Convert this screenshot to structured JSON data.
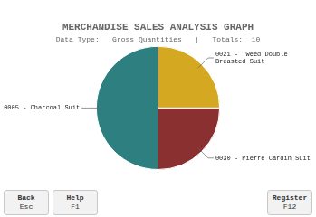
{
  "chart_data": {
    "type": "pie",
    "title": "MERCHANDISE SALES ANALYSIS GRAPH",
    "subtitle": "Data Type:   Gross Quantities   |   Totals:  10",
    "categories": [
      "0021 - Tweed Double\nBreasted Suit",
      "0030 - Pierre Cardin Suit",
      "0005 - Charcoal Suit"
    ],
    "values": [
      2.5,
      2.5,
      5
    ],
    "colors": [
      "#d4a820",
      "#8b3030",
      "#2e7f7f"
    ],
    "annotations": [
      "Back\nEsc",
      "Help\nF1",
      "Register\nF12"
    ]
  }
}
